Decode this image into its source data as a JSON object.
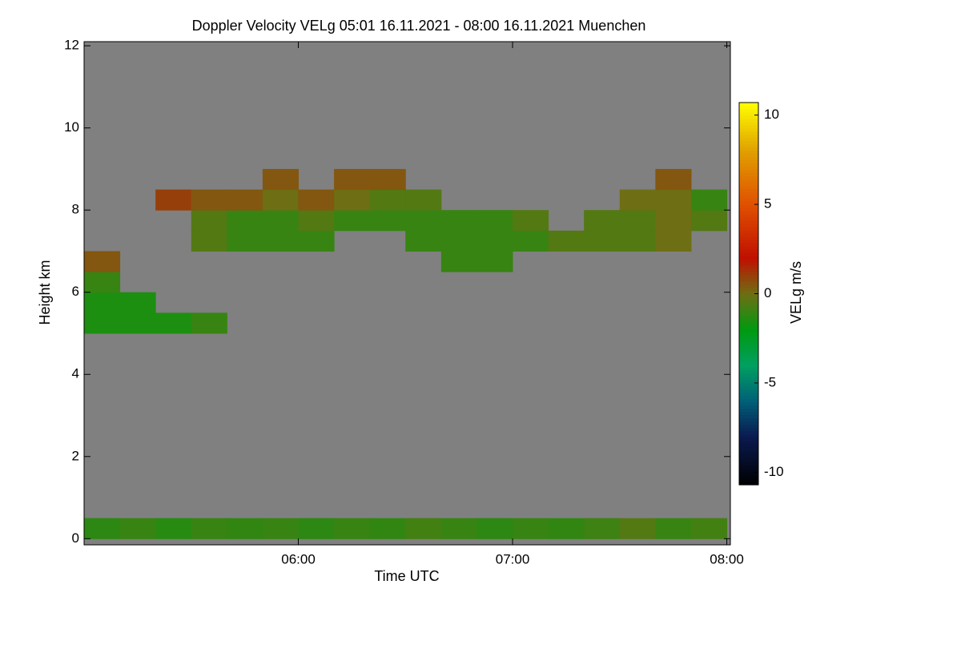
{
  "chart_data": {
    "type": "heatmap",
    "title": "Doppler Velocity VELg   05:01 16.11.2021 - 08:00 16.11.2021 Muenchen",
    "xlabel": "Time UTC",
    "ylabel": "Height km",
    "colorbar_label": "VELg m/s",
    "xlim": [
      300,
      481
    ],
    "xticks": [
      {
        "value": 360,
        "label": "06:00"
      },
      {
        "value": 420,
        "label": "07:00"
      },
      {
        "value": 480,
        "label": "08:00"
      }
    ],
    "ylim": [
      -0.15,
      12.1
    ],
    "yticks": [
      0,
      2,
      4,
      6,
      8,
      10,
      12
    ],
    "zlim": [
      -10.7,
      10.7
    ],
    "zticks": [
      -10,
      -5,
      0,
      5,
      10
    ],
    "missing_color": "#808080",
    "colormap": [
      {
        "value": -10.7,
        "color": "#000000"
      },
      {
        "value": -8,
        "color": "#0a1a50"
      },
      {
        "value": -6,
        "color": "#006078"
      },
      {
        "value": -4,
        "color": "#00a060"
      },
      {
        "value": -2,
        "color": "#009a10"
      },
      {
        "value": 0,
        "color": "#6e6e14"
      },
      {
        "value": 2,
        "color": "#c01000"
      },
      {
        "value": 5,
        "color": "#e05000"
      },
      {
        "value": 8,
        "color": "#e0a000"
      },
      {
        "value": 10.7,
        "color": "#ffff00"
      }
    ],
    "xbins": [
      300,
      310,
      320,
      330,
      340,
      350,
      360,
      370,
      380,
      390,
      400,
      410,
      420,
      430,
      440,
      450,
      460,
      470,
      480
    ],
    "ybins": [
      0,
      0.5,
      1,
      1.5,
      2,
      2.5,
      3,
      3.5,
      4,
      4.5,
      5,
      5.5,
      6,
      6.5,
      7,
      7.5,
      8,
      8.5,
      9,
      9.5,
      10,
      10.5,
      11,
      11.5,
      12
    ],
    "values": [
      [
        -1.2,
        -1,
        -1.3,
        -1,
        -1.1,
        -1,
        -1.2,
        -1,
        -1.1,
        -0.8,
        -1,
        -1.2,
        -1,
        -1.1,
        -0.9,
        -0.5,
        -1,
        -0.8
      ],
      [
        null,
        null,
        null,
        null,
        null,
        null,
        null,
        null,
        null,
        null,
        null,
        null,
        null,
        null,
        null,
        null,
        null,
        null
      ],
      [
        null,
        null,
        null,
        null,
        null,
        null,
        null,
        null,
        null,
        null,
        null,
        null,
        null,
        null,
        null,
        null,
        null,
        null
      ],
      [
        null,
        null,
        null,
        null,
        null,
        null,
        null,
        null,
        null,
        null,
        null,
        null,
        null,
        null,
        null,
        null,
        null,
        null
      ],
      [
        null,
        null,
        null,
        null,
        null,
        null,
        null,
        null,
        null,
        null,
        null,
        null,
        null,
        null,
        null,
        null,
        null,
        null
      ],
      [
        null,
        null,
        null,
        null,
        null,
        null,
        null,
        null,
        null,
        null,
        null,
        null,
        null,
        null,
        null,
        null,
        null,
        null
      ],
      [
        null,
        null,
        null,
        null,
        null,
        null,
        null,
        null,
        null,
        null,
        null,
        null,
        null,
        null,
        null,
        null,
        null,
        null
      ],
      [
        null,
        null,
        null,
        null,
        null,
        null,
        null,
        null,
        null,
        null,
        null,
        null,
        null,
        null,
        null,
        null,
        null,
        null
      ],
      [
        null,
        null,
        null,
        null,
        null,
        null,
        null,
        null,
        null,
        null,
        null,
        null,
        null,
        null,
        null,
        null,
        null,
        null
      ],
      [
        null,
        null,
        null,
        null,
        null,
        null,
        null,
        null,
        null,
        null,
        null,
        null,
        null,
        null,
        null,
        null,
        null,
        null
      ],
      [
        -1.5,
        -1.5,
        -1.5,
        -1,
        null,
        null,
        null,
        null,
        null,
        null,
        null,
        null,
        null,
        null,
        null,
        null,
        null,
        null
      ],
      [
        -1.5,
        -1.5,
        null,
        null,
        null,
        null,
        null,
        null,
        null,
        null,
        null,
        null,
        null,
        null,
        null,
        null,
        null,
        null
      ],
      [
        -1,
        null,
        null,
        null,
        null,
        null,
        null,
        null,
        null,
        null,
        null,
        null,
        null,
        null,
        null,
        null,
        null,
        null
      ],
      [
        0.5,
        null,
        null,
        null,
        null,
        null,
        null,
        null,
        null,
        null,
        -1,
        -1,
        null,
        null,
        null,
        null,
        null,
        null
      ],
      [
        null,
        null,
        null,
        -0.5,
        -1,
        -1,
        -1,
        null,
        null,
        -1,
        -1,
        -1,
        -1,
        -0.5,
        -0.5,
        -0.5,
        0,
        null
      ],
      [
        null,
        null,
        null,
        -0.5,
        -1,
        -1,
        -0.5,
        -1,
        -1,
        -1,
        -1,
        -1,
        -0.5,
        null,
        -0.5,
        -0.5,
        0,
        -0.5
      ],
      [
        null,
        null,
        1,
        0.5,
        0.5,
        0,
        0.5,
        0,
        -0.5,
        -0.5,
        null,
        null,
        null,
        null,
        null,
        0,
        0,
        -1
      ],
      [
        null,
        null,
        null,
        null,
        null,
        0.5,
        null,
        0.5,
        0.5,
        null,
        null,
        null,
        null,
        null,
        null,
        null,
        0.5,
        null
      ],
      [
        null,
        null,
        null,
        null,
        null,
        null,
        null,
        null,
        null,
        null,
        null,
        null,
        null,
        null,
        null,
        null,
        null,
        null
      ],
      [
        null,
        null,
        null,
        null,
        null,
        null,
        null,
        null,
        null,
        null,
        null,
        null,
        null,
        null,
        null,
        null,
        null,
        null
      ],
      [
        null,
        null,
        null,
        null,
        null,
        null,
        null,
        null,
        null,
        null,
        null,
        null,
        null,
        null,
        null,
        null,
        null,
        null
      ],
      [
        null,
        null,
        null,
        null,
        null,
        null,
        null,
        null,
        null,
        null,
        null,
        null,
        null,
        null,
        null,
        null,
        null,
        null
      ],
      [
        null,
        null,
        null,
        null,
        null,
        null,
        null,
        null,
        null,
        null,
        null,
        null,
        null,
        null,
        null,
        null,
        null,
        null
      ],
      [
        null,
        null,
        null,
        null,
        null,
        null,
        null,
        null,
        null,
        null,
        null,
        null,
        null,
        null,
        null,
        null,
        null,
        null
      ]
    ]
  }
}
